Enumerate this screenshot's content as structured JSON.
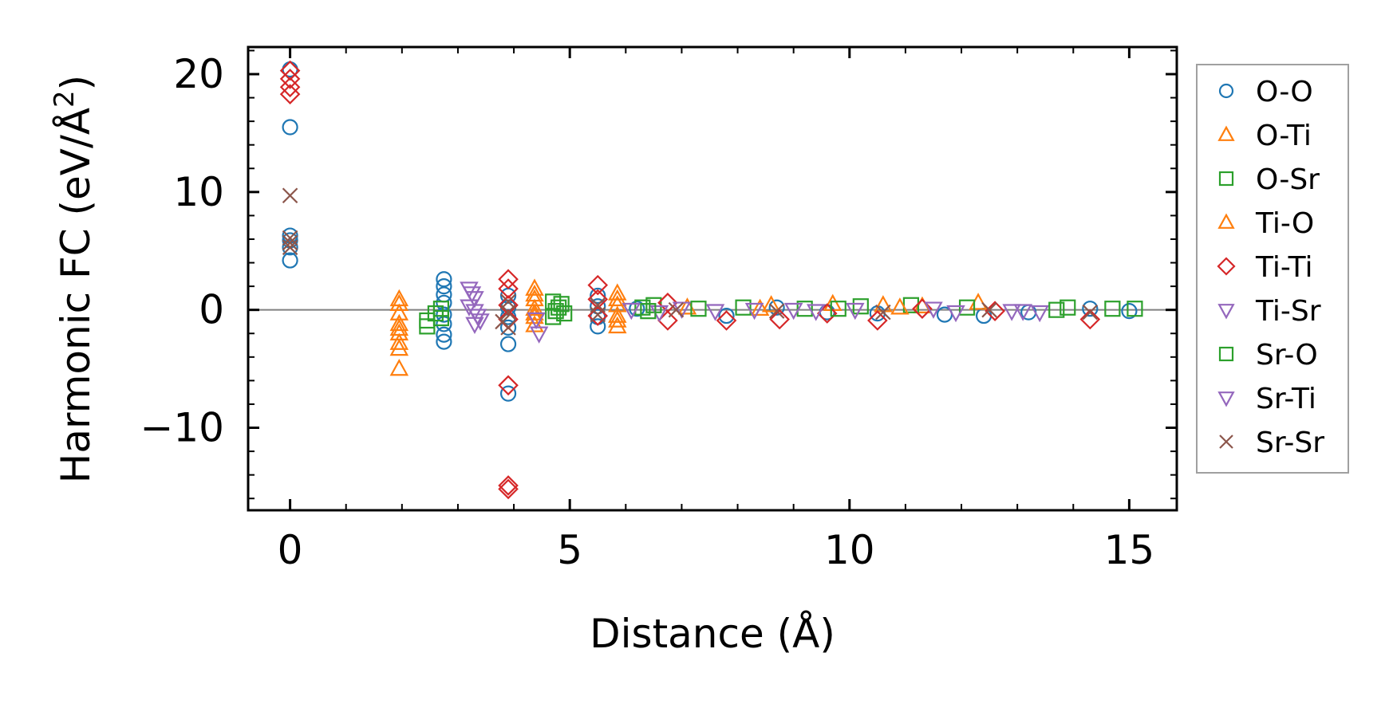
{
  "chart_data": {
    "type": "scatter",
    "xlabel": "Distance (Å)",
    "ylabel_main": "Harmonic FC (eV/Å",
    "ylabel_sup": "2",
    "ylabel_close": ")",
    "xlim": [
      -0.75,
      15.85
    ],
    "ylim": [
      -17.0,
      22.3
    ],
    "x_ticks": [
      0,
      5,
      10,
      15
    ],
    "x_tick_labels": [
      "0",
      "5",
      "10",
      "15"
    ],
    "y_ticks": [
      -10,
      0,
      10,
      20
    ],
    "y_tick_labels": [
      "−10",
      "0",
      "10",
      "20"
    ],
    "x_minor_step": 1,
    "y_minor_step": 2,
    "zero_line": 0,
    "legend_position": "outside-right",
    "series": [
      {
        "name": "O-O",
        "marker": "circle",
        "color": "#1f77b4",
        "points": [
          [
            0,
            20.4
          ],
          [
            0,
            15.5
          ],
          [
            0,
            6.3
          ],
          [
            0,
            5.9
          ],
          [
            0,
            5.3
          ],
          [
            0,
            4.2
          ],
          [
            2.75,
            2.6
          ],
          [
            2.75,
            2.0
          ],
          [
            2.75,
            1.3
          ],
          [
            2.75,
            0.6
          ],
          [
            2.75,
            -0.4
          ],
          [
            2.75,
            -1.2
          ],
          [
            2.75,
            -2.1
          ],
          [
            2.75,
            -2.7
          ],
          [
            3.9,
            1.2
          ],
          [
            3.9,
            0.2
          ],
          [
            3.9,
            -0.6
          ],
          [
            3.9,
            -1.5
          ],
          [
            3.9,
            -2.9
          ],
          [
            3.9,
            -7.1
          ],
          [
            5.5,
            1.2
          ],
          [
            5.5,
            0.3
          ],
          [
            5.5,
            -0.6
          ],
          [
            5.5,
            -1.4
          ],
          [
            6.2,
            0.1
          ],
          [
            7.8,
            -0.5
          ],
          [
            8.7,
            0.2
          ],
          [
            9.6,
            -0.2
          ],
          [
            10.5,
            -0.3
          ],
          [
            11.7,
            -0.4
          ],
          [
            12.4,
            -0.5
          ],
          [
            13.2,
            -0.2
          ],
          [
            14.3,
            0.1
          ],
          [
            15,
            -0.1
          ]
        ]
      },
      {
        "name": "O-Ti",
        "marker": "triangle-up",
        "color": "#ff7f0e",
        "points": [
          [
            1.95,
            0.5
          ],
          [
            1.95,
            -0.3
          ],
          [
            1.95,
            -1.2
          ],
          [
            1.95,
            -2.0
          ],
          [
            1.95,
            -2.8
          ],
          [
            1.95,
            -5.0
          ],
          [
            4.37,
            1.8
          ],
          [
            4.37,
            0.9
          ],
          [
            4.37,
            0.1
          ],
          [
            4.37,
            -0.6
          ],
          [
            4.37,
            -1.3
          ],
          [
            5.85,
            1.4
          ],
          [
            5.85,
            0.4
          ],
          [
            5.85,
            -0.5
          ],
          [
            5.85,
            -1.4
          ],
          [
            7.1,
            0.2
          ],
          [
            8.6,
            0.4
          ],
          [
            9.7,
            0.5
          ],
          [
            10.6,
            0.4
          ],
          [
            11.3,
            0.3
          ],
          [
            12.3,
            0.6
          ]
        ]
      },
      {
        "name": "O-Sr",
        "marker": "square",
        "color": "#2ca02c",
        "points": [
          [
            2.45,
            -0.9
          ],
          [
            2.6,
            -0.3
          ],
          [
            2.7,
            0.1
          ],
          [
            4.7,
            0.7
          ],
          [
            4.8,
            0.2
          ],
          [
            4.9,
            -0.3
          ],
          [
            4.7,
            -0.6
          ],
          [
            6.3,
            0.2
          ],
          [
            6.5,
            0.4
          ],
          [
            7.3,
            0.1
          ],
          [
            8.1,
            0.2
          ],
          [
            9.2,
            0.1
          ],
          [
            10.2,
            0.3
          ],
          [
            11.1,
            0.4
          ],
          [
            12.1,
            0.2
          ],
          [
            13.9,
            0.2
          ],
          [
            14.7,
            0.1
          ],
          [
            15.1,
            0.1
          ]
        ]
      },
      {
        "name": "Ti-O",
        "marker": "triangle-up",
        "color": "#ff7f0e",
        "points": [
          [
            1.95,
            0.9
          ],
          [
            1.95,
            -1.6
          ],
          [
            1.95,
            -3.3
          ],
          [
            4.37,
            1.3
          ],
          [
            4.37,
            -0.3
          ],
          [
            5.85,
            0.9
          ],
          [
            5.85,
            -0.9
          ],
          [
            8.4,
            0.1
          ],
          [
            10.9,
            0.2
          ]
        ]
      },
      {
        "name": "Ti-Ti",
        "marker": "diamond",
        "color": "#d62728",
        "points": [
          [
            0,
            20.3
          ],
          [
            0,
            19.6
          ],
          [
            0,
            18.9
          ],
          [
            0,
            18.3
          ],
          [
            3.9,
            2.6
          ],
          [
            3.9,
            1.8
          ],
          [
            3.9,
            0.4
          ],
          [
            3.9,
            -0.8
          ],
          [
            3.9,
            -6.4
          ],
          [
            3.9,
            -14.9
          ],
          [
            3.9,
            -15.2
          ],
          [
            5.5,
            2.1
          ],
          [
            5.5,
            0.9
          ],
          [
            5.5,
            -0.5
          ],
          [
            6.75,
            0.6
          ],
          [
            6.75,
            -0.9
          ],
          [
            7.8,
            -0.9
          ],
          [
            8.75,
            -0.8
          ],
          [
            9.6,
            -0.3
          ],
          [
            10.5,
            -0.9
          ],
          [
            11.3,
            0.1
          ],
          [
            12.6,
            -0.1
          ],
          [
            14.3,
            -0.8
          ]
        ]
      },
      {
        "name": "Ti-Sr",
        "marker": "triangle-down",
        "color": "#9467bd",
        "points": [
          [
            3.2,
            1.8
          ],
          [
            3.3,
            1.0
          ],
          [
            3.2,
            0.3
          ],
          [
            3.35,
            -0.5
          ],
          [
            3.3,
            -1.2
          ],
          [
            4.4,
            -0.8
          ],
          [
            4.45,
            -2.0
          ],
          [
            6.1,
            0.0
          ],
          [
            6.6,
            -0.2
          ],
          [
            7.6,
            -0.1
          ],
          [
            8.3,
            0.0
          ],
          [
            9.4,
            -0.1
          ],
          [
            10.1,
            0.0
          ],
          [
            11.9,
            -0.2
          ],
          [
            12.9,
            -0.1
          ],
          [
            13.4,
            -0.2
          ]
        ]
      },
      {
        "name": "Sr-O",
        "marker": "square",
        "color": "#2ca02c",
        "points": [
          [
            2.45,
            -1.4
          ],
          [
            2.7,
            -0.7
          ],
          [
            4.75,
            -0.1
          ],
          [
            4.85,
            0.5
          ],
          [
            6.4,
            -0.1
          ],
          [
            9.8,
            0.1
          ],
          [
            13.7,
            0.0
          ]
        ]
      },
      {
        "name": "Sr-Ti",
        "marker": "triangle-down",
        "color": "#9467bd",
        "points": [
          [
            3.25,
            1.4
          ],
          [
            3.3,
            -0.1
          ],
          [
            3.4,
            -0.9
          ],
          [
            7.0,
            0.1
          ],
          [
            9.0,
            0.0
          ],
          [
            11.5,
            0.1
          ],
          [
            13.1,
            -0.1
          ]
        ]
      },
      {
        "name": "Sr-Sr",
        "marker": "x",
        "color": "#8c564b",
        "points": [
          [
            0,
            9.7
          ],
          [
            0,
            6.1
          ],
          [
            0,
            5.7
          ],
          [
            0,
            5.3
          ],
          [
            3.9,
            0.7
          ],
          [
            3.9,
            -0.2
          ],
          [
            3.8,
            -1.0
          ],
          [
            3.9,
            -1.5
          ],
          [
            5.5,
            0.4
          ],
          [
            5.5,
            -0.4
          ],
          [
            6.9,
            0.0
          ],
          [
            8.7,
            -0.1
          ],
          [
            10.6,
            -0.2
          ],
          [
            12.5,
            0.0
          ],
          [
            14.3,
            -0.2
          ]
        ]
      }
    ]
  }
}
